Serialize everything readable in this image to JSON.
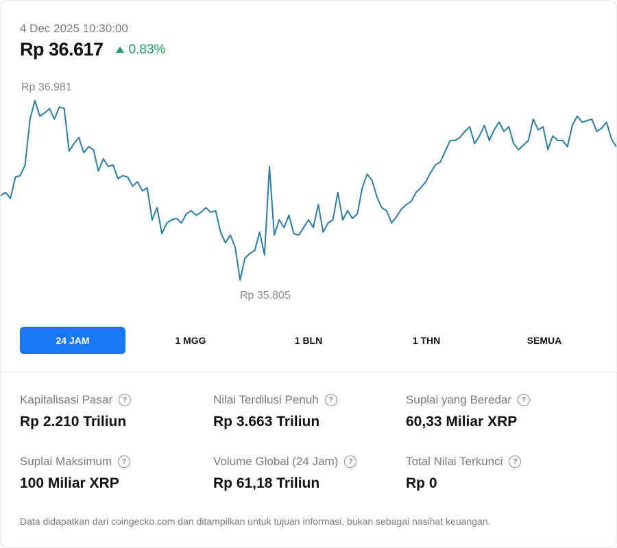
{
  "header": {
    "timestamp": "4 Dec 2025 10:30:00",
    "price": "Rp 36.617",
    "change": "0.83%",
    "change_direction": "up",
    "change_color": "#1e9e5a"
  },
  "chart_data": {
    "type": "line",
    "high_label": "Rp 36.981",
    "low_label": "Rp 35.805",
    "line_color": "#2a7aa6",
    "y_min": 35805,
    "y_max": 36981,
    "values": [
      36360,
      36380,
      36340,
      36480,
      36490,
      36560,
      36860,
      36981,
      36880,
      36900,
      36930,
      36860,
      36940,
      36930,
      36650,
      36700,
      36740,
      36640,
      36680,
      36660,
      36520,
      36600,
      36550,
      36560,
      36470,
      36490,
      36480,
      36420,
      36450,
      36390,
      36410,
      36200,
      36280,
      36110,
      36180,
      36200,
      36210,
      36180,
      36240,
      36260,
      36230,
      36250,
      36280,
      36250,
      36260,
      36120,
      36050,
      36100,
      36020,
      35805,
      35950,
      35980,
      36000,
      36120,
      35970,
      36550,
      36100,
      36200,
      36150,
      36230,
      36110,
      36100,
      36150,
      36200,
      36150,
      36300,
      36120,
      36180,
      36200,
      36380,
      36200,
      36260,
      36210,
      36240,
      36410,
      36500,
      36460,
      36350,
      36280,
      36260,
      36180,
      36220,
      36270,
      36300,
      36320,
      36380,
      36410,
      36450,
      36510,
      36560,
      36580,
      36650,
      36720,
      36720,
      36740,
      36780,
      36810,
      36700,
      36750,
      36820,
      36720,
      36790,
      36840,
      36780,
      36810,
      36700,
      36660,
      36690,
      36720,
      36860,
      36790,
      36810,
      36660,
      36750,
      36720,
      36720,
      36680,
      36820,
      36880,
      36840,
      36850,
      36860,
      36780,
      36800,
      36840,
      36730,
      36680
    ],
    "legend": "none",
    "grid": false
  },
  "timeframes": [
    {
      "label": "24 JAM",
      "active": true
    },
    {
      "label": "1 MGG",
      "active": false
    },
    {
      "label": "1 BLN",
      "active": false
    },
    {
      "label": "1 THN",
      "active": false
    },
    {
      "label": "SEMUA",
      "active": false
    }
  ],
  "stats": [
    {
      "label": "Kapitalisasi Pasar",
      "value": "Rp 2.210 Triliun"
    },
    {
      "label": "Nilai Terdilusi Penuh",
      "value": "Rp 3.663 Triliun"
    },
    {
      "label": "Suplai yang Beredar",
      "value": "60,33 Miliar XRP"
    },
    {
      "label": "Suplai Maksimum",
      "value": "100 Miliar XRP"
    },
    {
      "label": "Volume Global (24 Jam)",
      "value": "Rp 61,18 Triliun"
    },
    {
      "label": "Total Nilai Terkunci",
      "value": "Rp 0"
    }
  ],
  "help_icon_glyph": "?",
  "footnote": "Data didapatkan dari coingecko.com dan ditampilkan untuk tujuan informasi, bukan sebagai nasihat keuangan."
}
